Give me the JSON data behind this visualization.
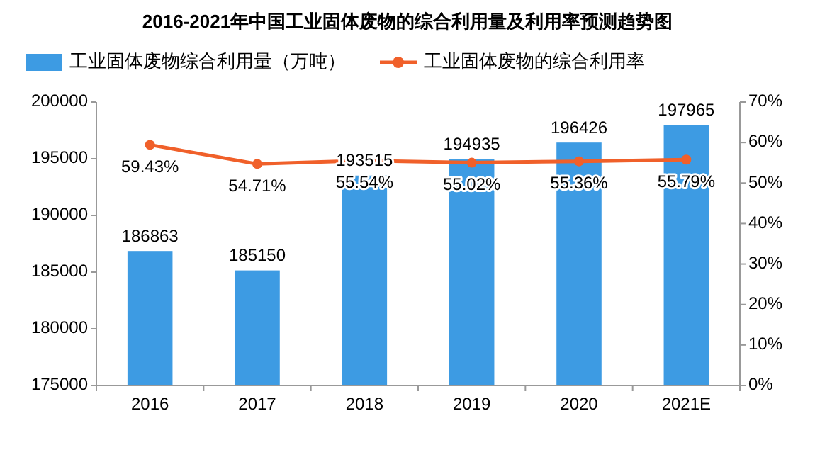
{
  "chart_data": {
    "type": "bar",
    "title": "2016-2021年中国工业固体废物的综合利用量及利用率预测趋势图",
    "categories": [
      "2016",
      "2017",
      "2018",
      "2019",
      "2020",
      "2021E"
    ],
    "series": [
      {
        "name": "工业固体废物综合利用量（万吨）",
        "color": "#3d9be3",
        "values": [
          186863,
          185150,
          193515,
          194935,
          196426,
          197965
        ],
        "value_labels": [
          "186863",
          "185150",
          "193515",
          "194935",
          "196426",
          "197965"
        ]
      },
      {
        "name": "工业固体废物的综合利用率",
        "type": "line",
        "axis": "y2",
        "color": "#f0602a",
        "marker": "circle",
        "values": [
          59.43,
          54.71,
          55.54,
          55.02,
          55.36,
          55.79
        ],
        "value_labels": [
          "59.43%",
          "54.71%",
          "55.54%",
          "55.02%",
          "55.36%",
          "55.79%"
        ]
      }
    ],
    "ylim": [
      175000,
      200000
    ],
    "yticks": [
      175000,
      180000,
      185000,
      190000,
      195000,
      200000
    ],
    "y2lim": [
      0,
      70
    ],
    "y2ticks": [
      {
        "value": 0,
        "label": "0%"
      },
      {
        "value": 10,
        "label": "10%"
      },
      {
        "value": 20,
        "label": "20%"
      },
      {
        "value": 30,
        "label": "30%"
      },
      {
        "value": 40,
        "label": "40%"
      },
      {
        "value": 50,
        "label": "50%"
      },
      {
        "value": 60,
        "label": "60%"
      },
      {
        "value": 70,
        "label": "70%"
      }
    ],
    "legend": "top",
    "grid": false
  }
}
